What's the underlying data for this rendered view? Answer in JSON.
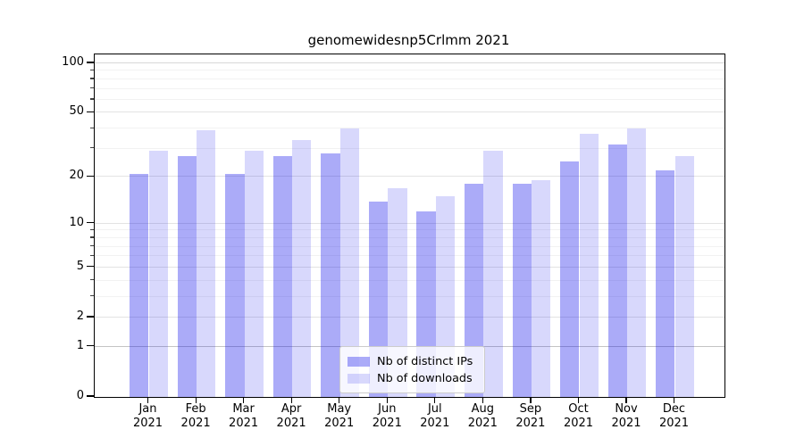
{
  "chart_data": {
    "type": "bar",
    "title": "genomewidesnp5Crlmm 2021",
    "categories": [
      "Jan",
      "Feb",
      "Mar",
      "Apr",
      "May",
      "Jun",
      "Jul",
      "Aug",
      "Sep",
      "Oct",
      "Nov",
      "Dec"
    ],
    "category_year": "2021",
    "series": [
      {
        "name": "Nb of distinct IPs",
        "color": "rgba(10,10,235,0.34)",
        "values": [
          21,
          27,
          21,
          27,
          28,
          14,
          12,
          18,
          18,
          25,
          32,
          22
        ]
      },
      {
        "name": "Nb of downloads",
        "color": "rgba(10,10,235,0.16)",
        "values": [
          29,
          39,
          29,
          34,
          40,
          17,
          15,
          29,
          19,
          37,
          40,
          27
        ]
      }
    ],
    "yscale": "log1p",
    "ylim": [
      0,
      113
    ],
    "y_major_ticks": [
      100,
      50,
      20,
      10,
      5,
      2,
      1,
      0
    ],
    "y_minor_ticks": [
      3,
      4,
      6,
      7,
      8,
      9,
      30,
      40,
      60,
      70,
      80,
      90
    ],
    "grid": "on",
    "legend_position": "lower-center-inside",
    "style": {
      "grid_major_color": "#e3e3e3",
      "grid_minor_color": "#f2f2f2",
      "grid_color_overrides": {
        "1": "#c4c4c4",
        "100": "#d8d8d8"
      },
      "axis_color": "#000000",
      "background": "#ffffff"
    }
  }
}
